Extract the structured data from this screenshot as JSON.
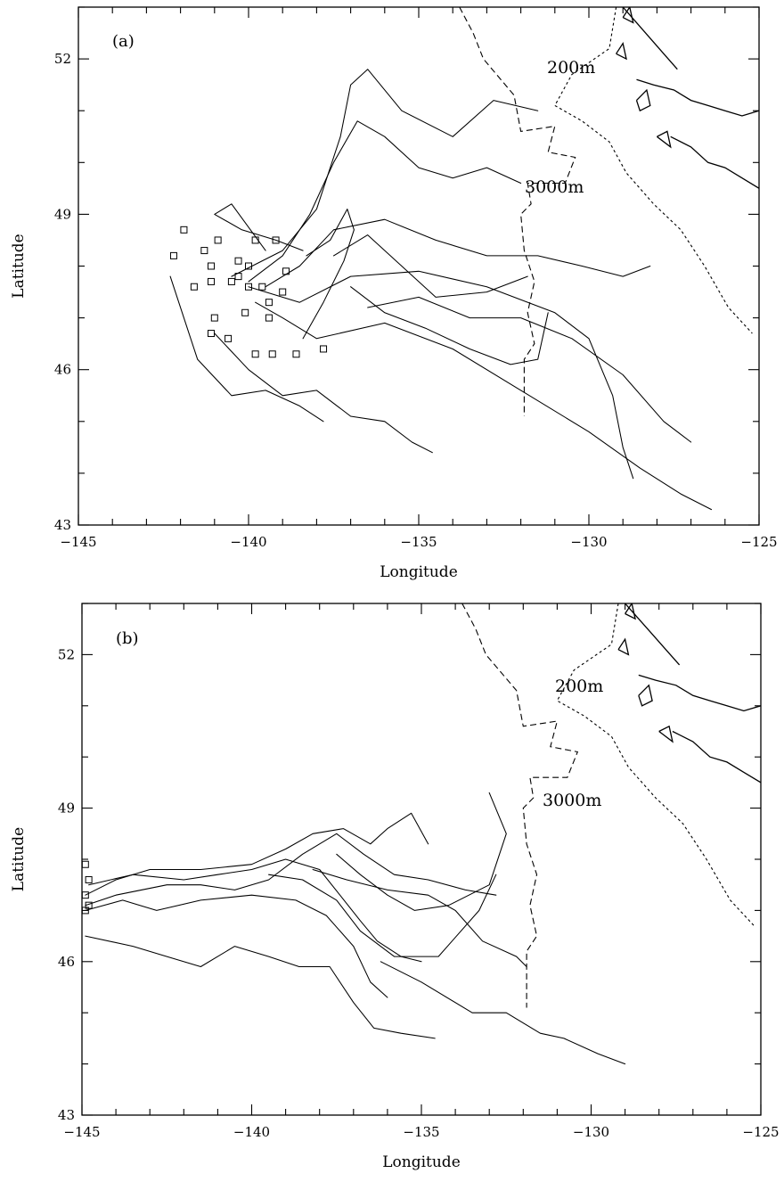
{
  "chart_data": [
    {
      "type": "line",
      "panel_label": "(a)",
      "xlabel": "Longitude",
      "ylabel": "Latitude",
      "xlim": [
        -145,
        -125
      ],
      "ylim": [
        43,
        53
      ],
      "xticks": [
        "-145",
        "-140",
        "-135",
        "-130",
        "-125"
      ],
      "yticks": [
        "43",
        "46",
        "49",
        "52"
      ],
      "annotations": [
        "200m",
        "3000m"
      ],
      "release_points": [
        [
          -142.2,
          48.2
        ],
        [
          -141.9,
          48.7
        ],
        [
          -141.6,
          47.6
        ],
        [
          -141.3,
          48.3
        ],
        [
          -141.1,
          48.0
        ],
        [
          -141.1,
          47.7
        ],
        [
          -141.0,
          47.0
        ],
        [
          -140.9,
          48.5
        ],
        [
          -140.5,
          47.7
        ],
        [
          -140.3,
          48.1
        ],
        [
          -140.3,
          47.8
        ],
        [
          -140.0,
          48.0
        ],
        [
          -140.0,
          47.6
        ],
        [
          -139.8,
          48.5
        ],
        [
          -139.6,
          47.6
        ],
        [
          -139.4,
          47.3
        ],
        [
          -139.2,
          48.5
        ],
        [
          -139.0,
          47.5
        ],
        [
          -138.9,
          47.9
        ],
        [
          -140.1,
          47.1
        ],
        [
          -139.4,
          47.0
        ],
        [
          -141.1,
          46.7
        ],
        [
          -140.6,
          46.6
        ],
        [
          -139.3,
          46.3
        ],
        [
          -138.6,
          46.3
        ],
        [
          -137.8,
          46.4
        ],
        [
          -139.8,
          46.3
        ]
      ],
      "series": [
        {
          "x": [
            -140.5,
            -139.0,
            -138.0,
            -137.3,
            -137.0,
            -136.5,
            -135.5,
            -134.0,
            -132.8,
            -131.5
          ],
          "y": [
            47.8,
            48.3,
            49.1,
            50.5,
            51.5,
            51.8,
            51.0,
            50.5,
            51.2,
            51.0
          ]
        },
        {
          "x": [
            -140.0,
            -139.0,
            -138.2,
            -137.5,
            -136.8,
            -136.0,
            -135.0,
            -134.0,
            -133.0,
            -132.0
          ],
          "y": [
            47.7,
            48.2,
            49.0,
            50.0,
            50.8,
            50.5,
            49.9,
            49.7,
            49.9,
            49.6
          ]
        },
        {
          "x": [
            -139.5,
            -138.5,
            -137.5,
            -136.0,
            -134.5,
            -133.0,
            -131.5,
            -130.2,
            -129.0,
            -128.2
          ],
          "y": [
            47.6,
            48.0,
            48.7,
            48.9,
            48.5,
            48.2,
            48.2,
            48.0,
            47.8,
            48.0
          ]
        },
        {
          "x": [
            -140.0,
            -138.5,
            -137.0,
            -135.0,
            -133.0,
            -131.0,
            -130.0,
            -129.3,
            -129.0,
            -128.7
          ],
          "y": [
            47.6,
            47.3,
            47.8,
            47.9,
            47.6,
            47.1,
            46.6,
            45.5,
            44.5,
            43.9
          ]
        },
        {
          "x": [
            -139.8,
            -139.0,
            -138.0,
            -136.0,
            -134.0,
            -132.0,
            -130.0,
            -128.5,
            -127.3,
            -126.4
          ],
          "y": [
            47.3,
            47.0,
            46.6,
            46.9,
            46.4,
            45.6,
            44.8,
            44.1,
            43.6,
            43.3
          ]
        },
        {
          "x": [
            -141.0,
            -140.0,
            -139.0,
            -138.0,
            -137.0,
            -136.0,
            -135.2,
            -134.6
          ],
          "y": [
            46.7,
            46.0,
            45.5,
            45.6,
            45.1,
            45.0,
            44.6,
            44.4
          ]
        },
        {
          "x": [
            -142.3,
            -141.5,
            -140.5,
            -139.5,
            -138.5,
            -137.8
          ],
          "y": [
            47.8,
            46.2,
            45.5,
            45.6,
            45.3,
            45.0
          ]
        },
        {
          "x": [
            -139.5,
            -140.5,
            -141.0,
            -140.2,
            -139.2,
            -138.4
          ],
          "y": [
            48.3,
            49.2,
            49.0,
            48.7,
            48.5,
            48.3
          ]
        },
        {
          "x": [
            -138.3,
            -137.6,
            -137.1,
            -136.9,
            -137.2,
            -137.8,
            -138.4
          ],
          "y": [
            48.2,
            48.5,
            49.1,
            48.7,
            48.1,
            47.3,
            46.6
          ]
        },
        {
          "x": [
            -137.0,
            -136.0,
            -134.8,
            -133.5,
            -132.3,
            -131.5,
            -131.2
          ],
          "y": [
            47.6,
            47.1,
            46.8,
            46.4,
            46.1,
            46.2,
            47.1
          ]
        },
        {
          "x": [
            -136.5,
            -135.0,
            -133.5,
            -132.0,
            -130.5,
            -129.0,
            -127.8,
            -127.0
          ],
          "y": [
            47.2,
            47.4,
            47.0,
            47.0,
            46.6,
            45.9,
            45.0,
            44.6
          ]
        },
        {
          "x": [
            -137.5,
            -136.5,
            -135.5,
            -134.5,
            -133.0,
            -131.8
          ],
          "y": [
            48.2,
            48.6,
            48.0,
            47.4,
            47.5,
            47.8
          ]
        }
      ]
    },
    {
      "type": "line",
      "panel_label": "(b)",
      "xlabel": "Longitude",
      "ylabel": "Latitude",
      "xlim": [
        -145,
        -125
      ],
      "ylim": [
        43,
        53
      ],
      "xticks": [
        "-145",
        "-140",
        "-135",
        "-130",
        "-125"
      ],
      "yticks": [
        "43",
        "46",
        "49",
        "52"
      ],
      "annotations": [
        "200m",
        "3000m"
      ],
      "release_points": [
        [
          -144.9,
          47.9
        ],
        [
          -144.8,
          47.6
        ],
        [
          -144.9,
          47.3
        ],
        [
          -144.8,
          47.1
        ],
        [
          -144.9,
          47.0
        ]
      ],
      "series": [
        {
          "x": [
            -144.9,
            -144.0,
            -143.0,
            -141.5,
            -140.0,
            -139.0,
            -138.2,
            -137.3,
            -136.5,
            -136.0,
            -135.3,
            -134.8
          ],
          "y": [
            47.3,
            47.6,
            47.8,
            47.8,
            47.9,
            48.2,
            48.5,
            48.6,
            48.3,
            48.6,
            48.9,
            48.3
          ]
        },
        {
          "x": [
            -144.8,
            -143.5,
            -142.0,
            -141.0,
            -140.0,
            -139.0,
            -138.0,
            -137.4,
            -136.8,
            -136.3,
            -135.6,
            -135.0
          ],
          "y": [
            47.5,
            47.7,
            47.6,
            47.7,
            47.8,
            48.0,
            47.8,
            47.3,
            46.8,
            46.4,
            46.1,
            46.0
          ]
        },
        {
          "x": [
            -144.9,
            -144.0,
            -142.5,
            -141.5,
            -140.5,
            -139.5,
            -138.5,
            -137.5,
            -136.7,
            -135.8,
            -134.8,
            -133.7,
            -132.8
          ],
          "y": [
            47.1,
            47.3,
            47.5,
            47.5,
            47.4,
            47.6,
            48.1,
            48.5,
            48.1,
            47.7,
            47.6,
            47.4,
            47.3
          ]
        },
        {
          "x": [
            -144.9,
            -143.8,
            -142.8,
            -141.5,
            -140.0,
            -138.7,
            -137.8,
            -137.0,
            -136.5,
            -136.0
          ],
          "y": [
            47.0,
            47.2,
            47.0,
            47.2,
            47.3,
            47.2,
            46.9,
            46.3,
            45.6,
            45.3
          ]
        },
        {
          "x": [
            -144.9,
            -143.5,
            -142.5,
            -141.5,
            -140.5,
            -139.5,
            -138.6,
            -137.7,
            -137.0,
            -136.4,
            -135.6,
            -134.6
          ],
          "y": [
            46.5,
            46.3,
            46.1,
            45.9,
            46.3,
            46.1,
            45.9,
            45.9,
            45.2,
            44.7,
            44.6,
            44.5
          ]
        },
        {
          "x": [
            -136.2,
            -135.0,
            -133.5,
            -132.5,
            -131.5,
            -130.8,
            -129.8,
            -129.0
          ],
          "y": [
            46.0,
            45.6,
            45.0,
            45.0,
            44.6,
            44.5,
            44.2,
            44.0
          ]
        },
        {
          "x": [
            -138.2,
            -137.2,
            -136.0,
            -134.8,
            -134.0,
            -133.2,
            -132.2,
            -131.9
          ],
          "y": [
            47.8,
            47.6,
            47.4,
            47.3,
            47.0,
            46.4,
            46.1,
            45.9
          ]
        },
        {
          "x": [
            -137.5,
            -136.8,
            -136.0,
            -135.2,
            -134.2,
            -133.0,
            -132.5,
            -133.0
          ],
          "y": [
            48.1,
            47.7,
            47.3,
            47.0,
            47.1,
            47.5,
            48.5,
            49.3
          ]
        },
        {
          "x": [
            -139.5,
            -138.5,
            -137.5,
            -136.8,
            -135.8,
            -134.5,
            -133.3,
            -132.8
          ],
          "y": [
            47.7,
            47.6,
            47.2,
            46.6,
            46.1,
            46.1,
            47.0,
            47.7
          ]
        }
      ]
    }
  ]
}
